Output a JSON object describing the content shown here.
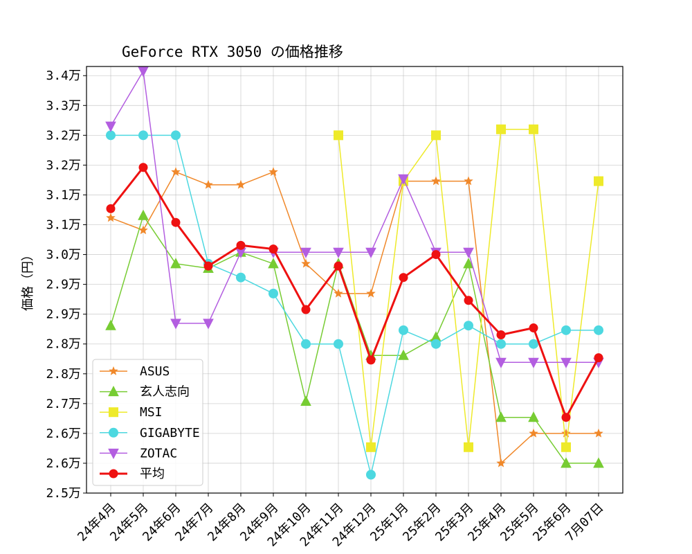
{
  "chart_data": {
    "type": "line",
    "title": "GeForce RTX 3050 の価格推移",
    "xlabel": "",
    "ylabel": "価格（円）",
    "ylim": [
      25000,
      34300
    ],
    "grid": true,
    "legend_position": "lower-left",
    "categories": [
      "24年4月",
      "24年5月",
      "24年6月",
      "24年7月",
      "24年8月",
      "24年9月",
      "24年10月",
      "24年11月",
      "24年12月",
      "25年1月",
      "25年2月",
      "25年3月",
      "25年4月",
      "25年5月",
      "25年6月",
      "7月07日"
    ],
    "yticks": [
      {
        "value": 25000,
        "label": "2.5万"
      },
      {
        "value": 25650,
        "label": "2.6万"
      },
      {
        "value": 26300,
        "label": "2.6万"
      },
      {
        "value": 26950,
        "label": "2.7万"
      },
      {
        "value": 27600,
        "label": "2.8万"
      },
      {
        "value": 28250,
        "label": "2.8万"
      },
      {
        "value": 28900,
        "label": "2.9万"
      },
      {
        "value": 29550,
        "label": "2.9万"
      },
      {
        "value": 30200,
        "label": "3.0万"
      },
      {
        "value": 30850,
        "label": "3.1万"
      },
      {
        "value": 31500,
        "label": "3.1万"
      },
      {
        "value": 32150,
        "label": "3.2万"
      },
      {
        "value": 32800,
        "label": "3.2万"
      },
      {
        "value": 33450,
        "label": "3.3万"
      },
      {
        "value": 34100,
        "label": "3.4万"
      }
    ],
    "series": [
      {
        "name": "ASUS",
        "color": "#f0882a",
        "marker": "star",
        "linewidth": 1.5,
        "values": [
          31000,
          30730,
          32000,
          31720,
          31720,
          32000,
          30000,
          29350,
          29350,
          31800,
          31800,
          31800,
          25650,
          26300,
          26300,
          26300
        ]
      },
      {
        "name": "玄人志向",
        "color": "#77cc33",
        "marker": "triangle-up",
        "linewidth": 1.5,
        "values": [
          28650,
          31050,
          30000,
          29900,
          30250,
          30000,
          27000,
          30000,
          28000,
          28000,
          28400,
          30000,
          26650,
          26650,
          25650,
          25650
        ]
      },
      {
        "name": "MSI",
        "color": "#eeea2a",
        "marker": "square",
        "linewidth": 1.5,
        "values": [
          null,
          null,
          null,
          null,
          null,
          null,
          null,
          32800,
          26000,
          31800,
          32800,
          26000,
          32930,
          32930,
          26000,
          31800
        ]
      },
      {
        "name": "GIGABYTE",
        "color": "#4dd8e0",
        "marker": "circle",
        "linewidth": 1.5,
        "values": [
          32800,
          32800,
          32800,
          30000,
          29700,
          29350,
          28250,
          28250,
          25400,
          28550,
          28250,
          28650,
          28250,
          28250,
          28550,
          28550
        ]
      },
      {
        "name": "ZOTAC",
        "color": "#b35ee0",
        "marker": "triangle-down",
        "linewidth": 1.5,
        "values": [
          33000,
          34200,
          28700,
          28700,
          30250,
          30250,
          30250,
          30250,
          30250,
          31850,
          30250,
          30250,
          27850,
          27850,
          27850,
          27850
        ]
      },
      {
        "name": "平均",
        "color": "#ee1111",
        "marker": "circle",
        "linewidth": 3,
        "values": [
          31200,
          32100,
          30900,
          29950,
          30400,
          30320,
          29000,
          29950,
          27900,
          29700,
          30200,
          29200,
          28450,
          28600,
          26650,
          27950
        ]
      }
    ]
  }
}
